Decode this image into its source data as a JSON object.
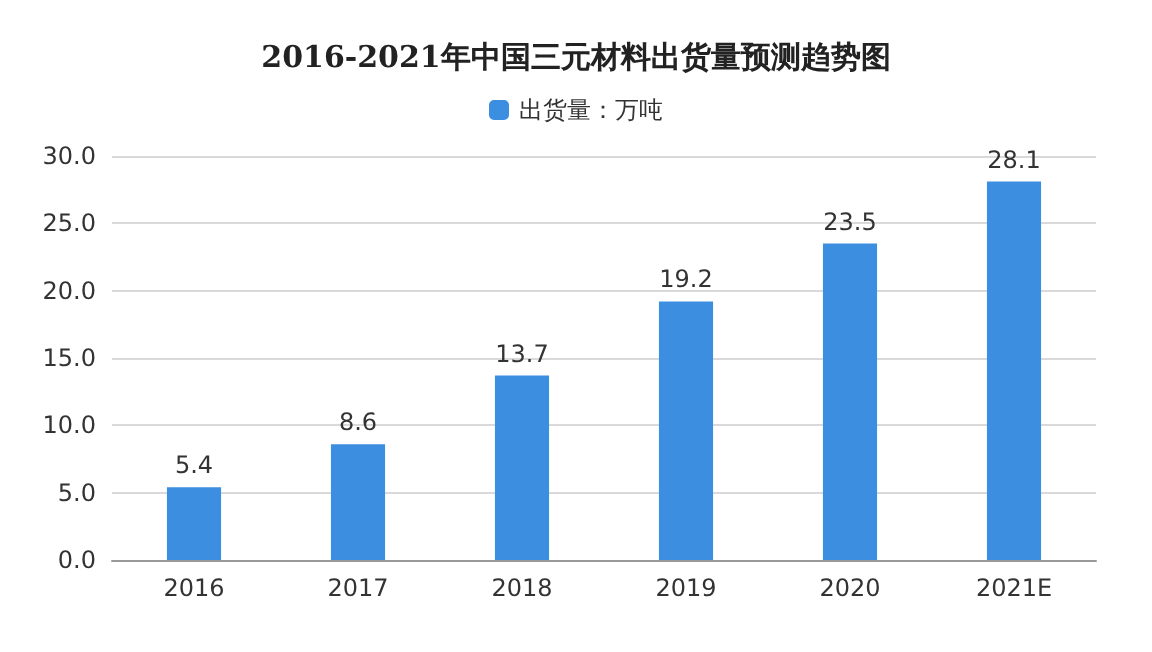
{
  "chart_data": {
    "type": "bar",
    "title": "2016-2021年中国三元材料出货量预测趋势图",
    "categories": [
      "2016",
      "2017",
      "2018",
      "2019",
      "2020",
      "2021E"
    ],
    "series": [
      {
        "name": "出货量：万吨",
        "color": "#3b8ee0",
        "values": [
          5.4,
          8.6,
          13.7,
          19.2,
          23.5,
          28.1
        ]
      }
    ],
    "ylim": [
      0,
      30
    ],
    "yticks": [
      {
        "value": 0,
        "label": "0.0"
      },
      {
        "value": 5,
        "label": "5.0"
      },
      {
        "value": 10,
        "label": "10.0"
      },
      {
        "value": 15,
        "label": "15.0"
      },
      {
        "value": 20,
        "label": "20.0"
      },
      {
        "value": 25,
        "label": "25.0"
      },
      {
        "value": 30,
        "label": "30.0"
      }
    ],
    "grid": "y",
    "legend": "top",
    "data_labels": true
  }
}
